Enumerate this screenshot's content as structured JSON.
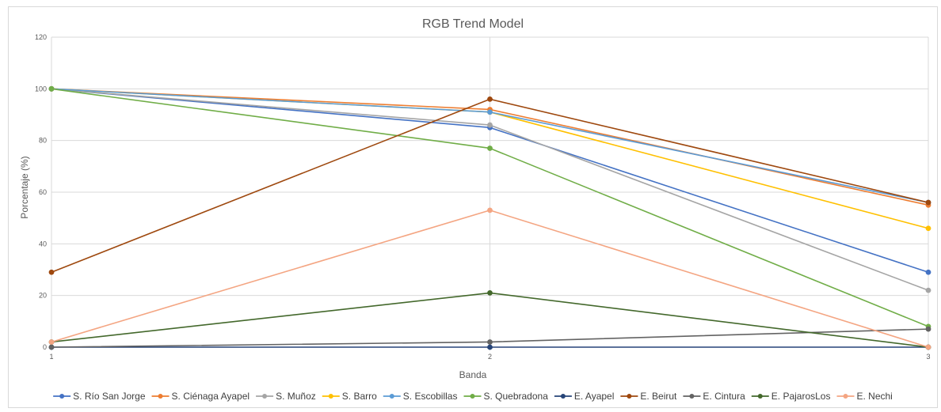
{
  "chart_data": {
    "type": "line",
    "title": "RGB Trend Model",
    "xlabel": "Banda",
    "ylabel": "Porcentaje (%)",
    "x": [
      1,
      2,
      3
    ],
    "xlim": [
      1,
      3
    ],
    "ylim": [
      0,
      120
    ],
    "yticks": [
      0,
      20,
      40,
      60,
      80,
      100,
      120
    ],
    "grid": true,
    "legend_position": "bottom",
    "series": [
      {
        "name": "S. Río San Jorge",
        "color": "#4472C4",
        "values": [
          100,
          85,
          29
        ]
      },
      {
        "name": "S. Ciénaga Ayapel",
        "color": "#ED7D31",
        "values": [
          100,
          92,
          55
        ]
      },
      {
        "name": "S. Muñoz",
        "color": "#A5A5A5",
        "values": [
          100,
          86,
          22
        ]
      },
      {
        "name": "S. Barro",
        "color": "#FFC000",
        "values": [
          100,
          91,
          46
        ]
      },
      {
        "name": "S. Escobillas",
        "color": "#5B9BD5",
        "values": [
          100,
          91,
          56
        ]
      },
      {
        "name": "S. Quebradona",
        "color": "#70AD47",
        "values": [
          100,
          77,
          8
        ]
      },
      {
        "name": "E. Ayapel",
        "color": "#264478",
        "values": [
          0,
          0,
          0
        ]
      },
      {
        "name": "E. Beirut",
        "color": "#9E480E",
        "values": [
          29,
          96,
          56
        ]
      },
      {
        "name": "E. Cintura",
        "color": "#636363",
        "values": [
          0,
          2,
          7
        ]
      },
      {
        "name": "E. PajarosLos",
        "color": "#43682B",
        "values": [
          2,
          21,
          0
        ]
      },
      {
        "name": "E. Nechi",
        "color": "#F4A582",
        "values": [
          2,
          53,
          0
        ]
      }
    ]
  }
}
